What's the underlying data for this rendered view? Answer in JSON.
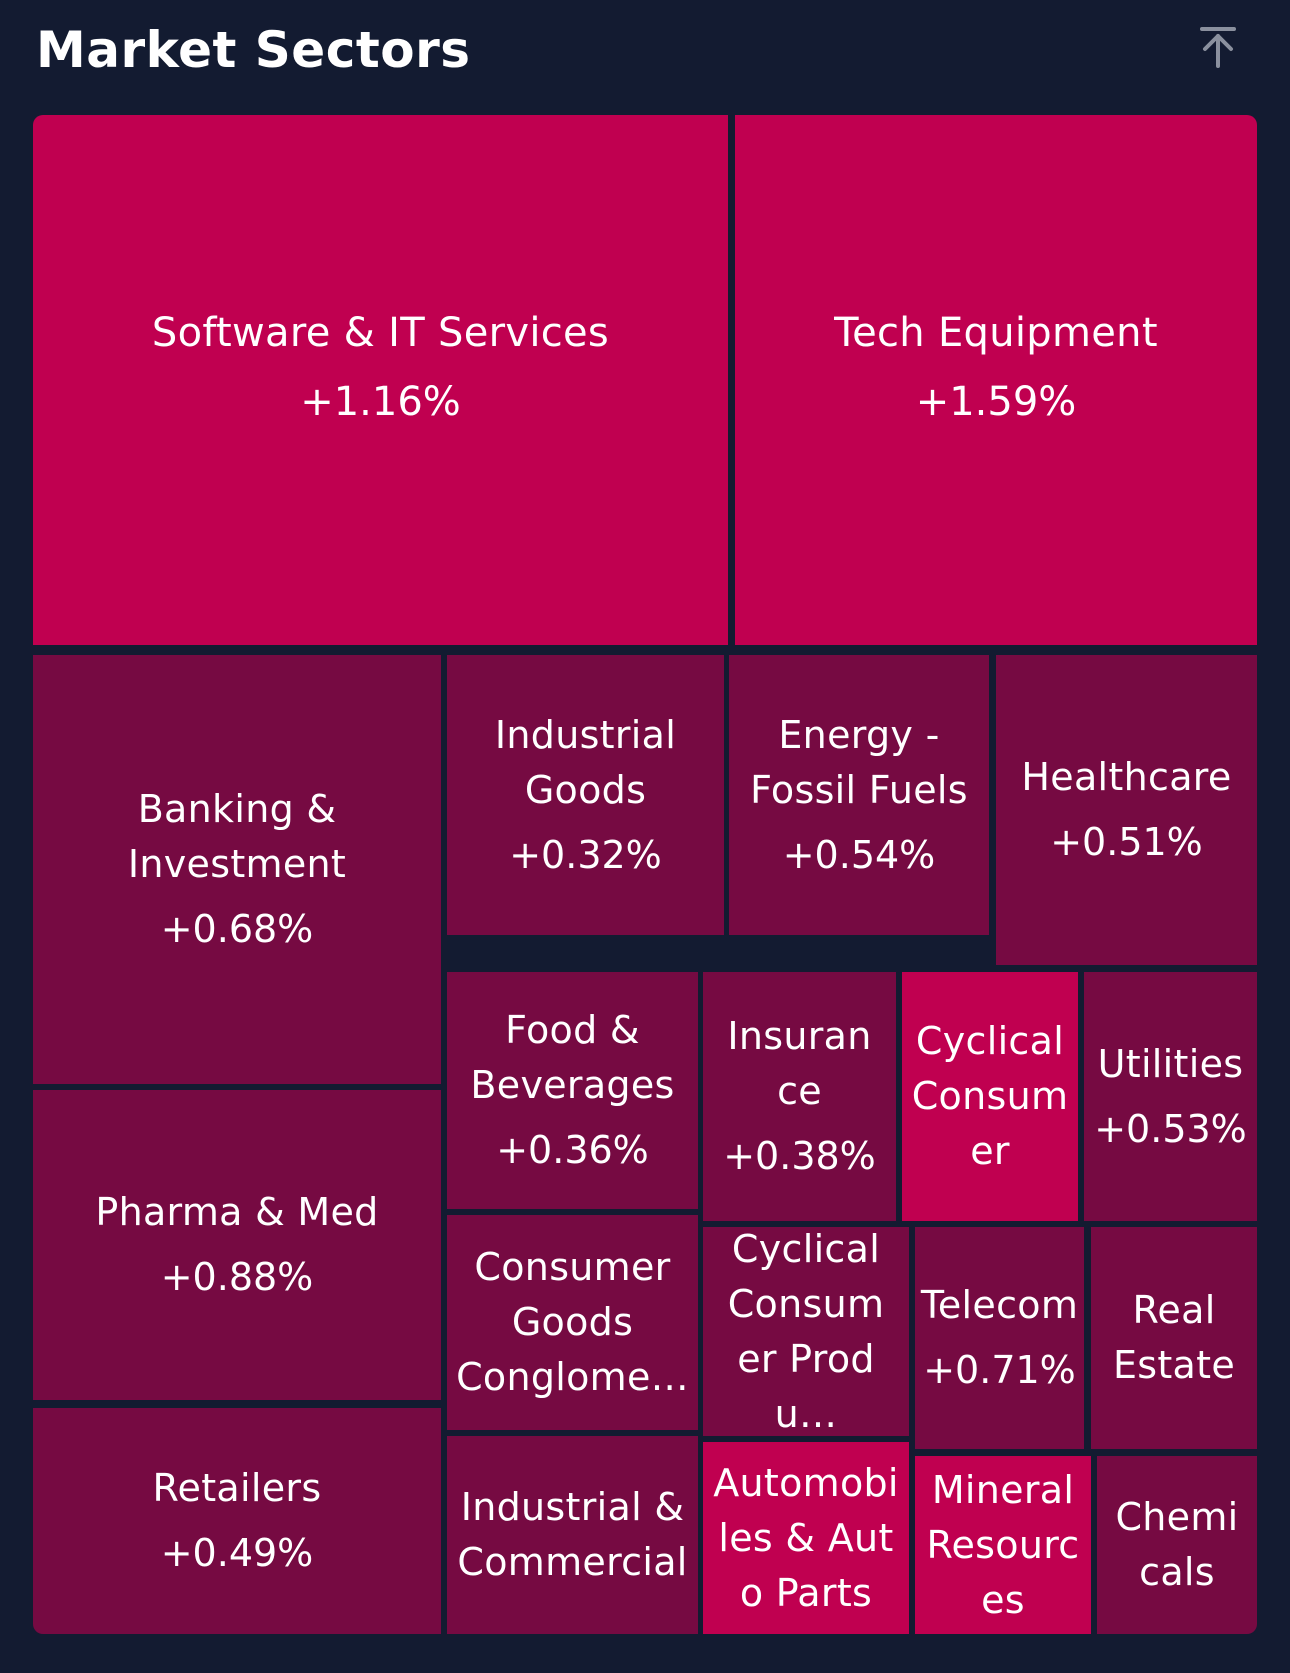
{
  "header": {
    "title": "Market Sectors",
    "collapse_icon": "collapse-up-icon"
  },
  "colors": {
    "background": "#131b31",
    "strong_gain": "#c00050",
    "moderate_gain": "#760a42",
    "text": "#ffffff",
    "icon": "#8a909e"
  },
  "sectors": [
    {
      "name": "Software & IT Services",
      "change": "+1.16%"
    },
    {
      "name": "Tech Equipment",
      "change": "+1.59%"
    },
    {
      "name": "Banking & Investment",
      "change": "+0.68%"
    },
    {
      "name": "Industrial Goods",
      "change": "+0.32%"
    },
    {
      "name": "Energy - Fossil Fuels",
      "change": "+0.54%"
    },
    {
      "name": "Healthcare",
      "change": "+0.51%"
    },
    {
      "name": "Pharma & Med",
      "change": "+0.88%"
    },
    {
      "name": "Food & Beverages",
      "change": "+0.36%"
    },
    {
      "name": "Insurance",
      "change": "+0.38%"
    },
    {
      "name": "Cyclical Consumer",
      "change": ""
    },
    {
      "name": "Utilities",
      "change": "+0.53%"
    },
    {
      "name": "Consumer Goods Conglome…",
      "change": ""
    },
    {
      "name": "Cyclical Consumer Produ…",
      "change": ""
    },
    {
      "name": "Telecom",
      "change": "+0.71%"
    },
    {
      "name": "Real Estate",
      "change": ""
    },
    {
      "name": "Retailers",
      "change": "+0.49%"
    },
    {
      "name": "Industrial & Commercial",
      "change": ""
    },
    {
      "name": "Automobiles & Auto Parts",
      "change": ""
    },
    {
      "name": "Mineral Resources",
      "change": ""
    },
    {
      "name": "Chemicals",
      "change": ""
    }
  ]
}
